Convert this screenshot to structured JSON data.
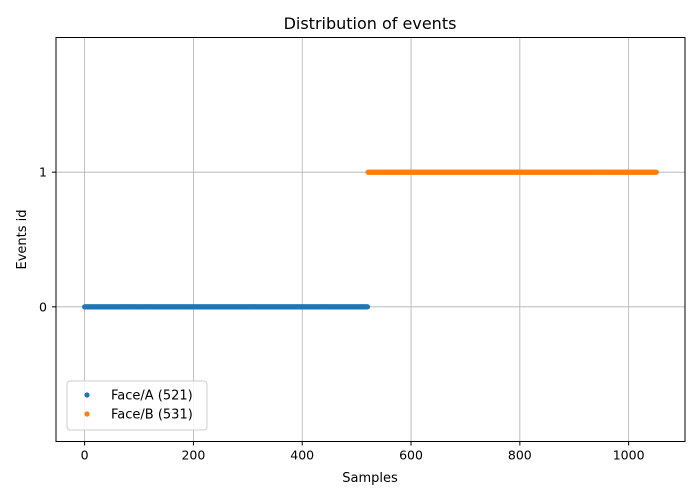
{
  "chart_data": {
    "type": "scatter",
    "title": "Distribution of events",
    "xlabel": "Samples",
    "ylabel": "Events id",
    "xlim": [
      -52.6,
      1103.6
    ],
    "ylim": [
      -1,
      2
    ],
    "xticks": [
      0,
      200,
      400,
      600,
      800,
      1000
    ],
    "yticks": [
      0,
      1
    ],
    "grid": true,
    "legend_position": "lower-left",
    "series": [
      {
        "name": "Face/A (521)",
        "color": "#1f77b4",
        "y": 0,
        "x_start": 0,
        "x_end": 520
      },
      {
        "name": "Face/B (531)",
        "color": "#ff7f0e",
        "y": 1,
        "x_start": 521,
        "x_end": 1051
      }
    ]
  }
}
